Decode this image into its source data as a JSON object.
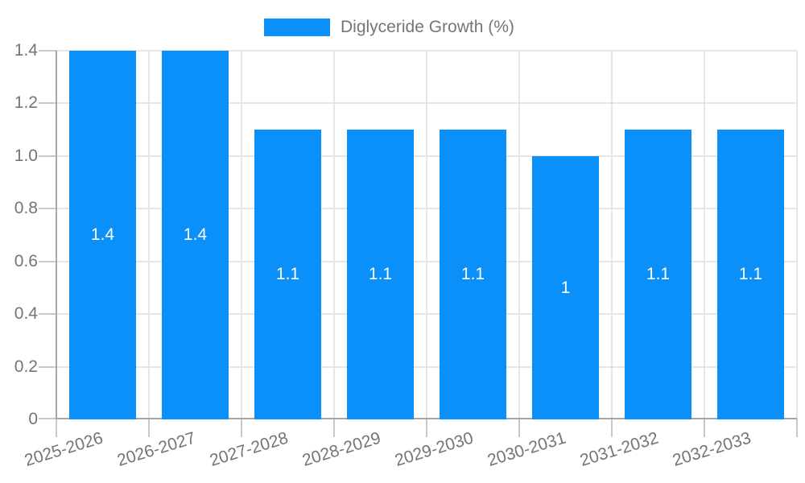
{
  "chart_data": {
    "type": "bar",
    "title": "",
    "legend_label": "Diglyceride Growth (%)",
    "legend_position": "top-center",
    "categories": [
      "2025-2026",
      "2026-2027",
      "2027-2028",
      "2028-2029",
      "2029-2030",
      "2030-2031",
      "2031-2032",
      "2032-2033"
    ],
    "values": [
      1.4,
      1.4,
      1.1,
      1.1,
      1.1,
      1,
      1.1,
      1.1
    ],
    "bar_labels": [
      "1.4",
      "1.4",
      "1.1",
      "1.1",
      "1.1",
      "1",
      "1.1",
      "1.1"
    ],
    "y_tick_labels": [
      "1.4",
      "1.2",
      "1.0",
      "0.8",
      "0.6",
      "0.4",
      "0.2",
      "0"
    ],
    "ylim": [
      0,
      1.4
    ],
    "xlabel": "",
    "ylabel": "",
    "grid": true,
    "colors": {
      "bar": "#0a90f8",
      "grid": "#e6e6e6",
      "axis": "#a6a6a6",
      "tick": "#c9c9c9",
      "axis_text": "#757575",
      "bar_label": "#ffffff",
      "background": "#ffffff"
    }
  }
}
